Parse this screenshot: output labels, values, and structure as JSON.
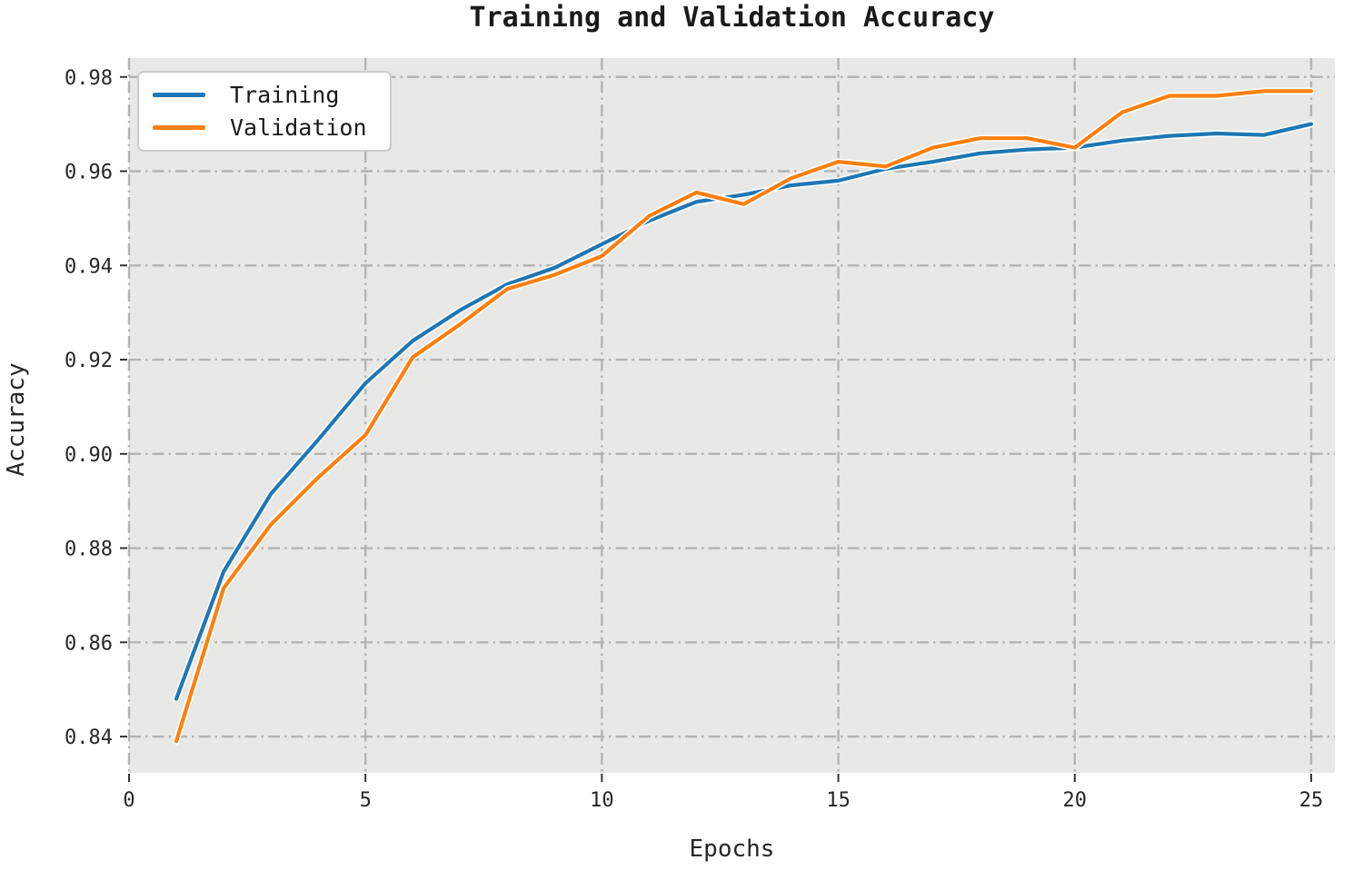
{
  "chart_data": {
    "type": "line",
    "title": "Training and Validation Accuracy",
    "xlabel": "Epochs",
    "ylabel": "Accuracy",
    "x": [
      1,
      2,
      3,
      4,
      5,
      6,
      7,
      8,
      9,
      10,
      11,
      12,
      13,
      14,
      15,
      16,
      17,
      18,
      19,
      20,
      21,
      22,
      23,
      24,
      25
    ],
    "series": [
      {
        "name": "Training",
        "color": "#1f77b4",
        "values": [
          0.848,
          0.875,
          0.8915,
          0.903,
          0.915,
          0.924,
          0.9305,
          0.936,
          0.9395,
          0.9445,
          0.9495,
          0.9535,
          0.955,
          0.957,
          0.958,
          0.9605,
          0.962,
          0.9638,
          0.9646,
          0.965,
          0.9665,
          0.9675,
          0.968,
          0.9677,
          0.97
        ]
      },
      {
        "name": "Validation",
        "color": "#ff7f0e",
        "values": [
          0.839,
          0.8715,
          0.885,
          0.895,
          0.904,
          0.9205,
          0.9275,
          0.935,
          0.938,
          0.942,
          0.9505,
          0.9555,
          0.953,
          0.9585,
          0.962,
          0.961,
          0.965,
          0.967,
          0.967,
          0.965,
          0.9725,
          0.976,
          0.976,
          0.977,
          0.977
        ]
      }
    ],
    "xlim": [
      0,
      25.5
    ],
    "ylim": [
      0.8323,
      0.984
    ],
    "xticks": [
      0,
      5,
      10,
      15,
      20,
      25
    ],
    "yticks": [
      0.84,
      0.86,
      0.88,
      0.9,
      0.92,
      0.94,
      0.96,
      0.98
    ],
    "grid": true,
    "grid_style": "dash-dot",
    "legend_position": "upper left",
    "colors": {
      "plot_bg": "#e8e8e7",
      "grid": "#b3b3b3",
      "tick": "#333333",
      "text": "#262626",
      "figure_bg": "#ffffff",
      "legend_border": "#cccccc"
    }
  }
}
